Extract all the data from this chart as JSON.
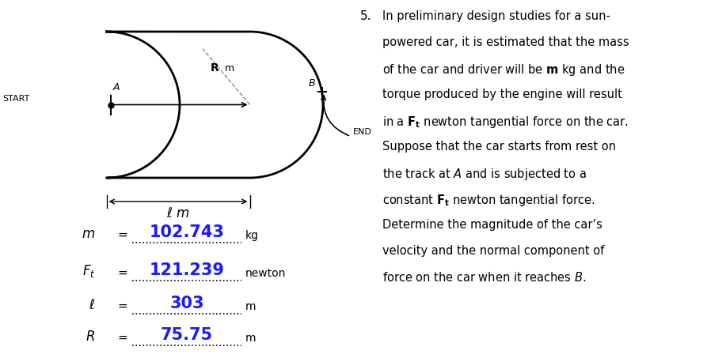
{
  "m_value": "102.743",
  "Ft_value": "121.239",
  "ell_value": "303",
  "R_value": "75.75",
  "m_unit": "kg",
  "Ft_unit": "newton",
  "ell_unit": "m",
  "R_unit": "m",
  "value_color": "#1a1aff",
  "problem_number": "5.",
  "problem_lines": [
    "In preliminary design studies for a sun-",
    "powered car, it is estimated that the mass",
    "of the car and driver will be BOLD_m kg and the",
    "torque produced by the engine will result",
    "in a BOLD_Ft newton tangential force on the car.",
    "Suppose that the car starts from rest on",
    "the track at ITALIC_A and is subjected to a",
    "constant BOLD_Ft newton tangential force.",
    "Determine the magnitude of the car’s",
    "velocity and the normal component of",
    "force on the car when it reaches ITALIC_B."
  ]
}
